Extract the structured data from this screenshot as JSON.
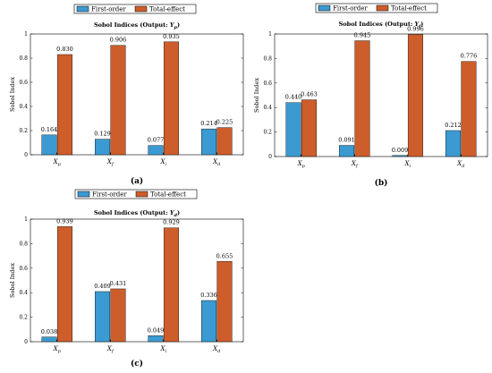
{
  "colors": {
    "first_order": "#3b9ad1",
    "total_effect": "#cd5d2a",
    "axis": "#000000",
    "grid_bg": "#ffffff"
  },
  "chart_data": [
    {
      "type": "bar",
      "title": "Sobol Indices (Output: Yp)",
      "title_prefix": "Sobol Indices (Output: ",
      "title_var": "Y",
      "title_sub": "p",
      "title_suffix": ")",
      "panel_label": "(a)",
      "ylabel": "Sobol Index",
      "ylim": [
        0,
        1
      ],
      "yticks": [
        "0",
        "0.2",
        "0.4",
        "0.6",
        "0.8",
        "1"
      ],
      "categories": [
        {
          "base": "X",
          "sub": "p"
        },
        {
          "base": "X",
          "sub": "f"
        },
        {
          "base": "X",
          "sub": "i"
        },
        {
          "base": "X",
          "sub": "d"
        }
      ],
      "legend": [
        "First-order",
        "Total-effect"
      ],
      "series": [
        {
          "name": "First-order",
          "values": [
            0.164,
            0.129,
            0.077,
            0.214
          ],
          "labels": [
            "0.164",
            "0.129",
            "0.077",
            "0.214"
          ]
        },
        {
          "name": "Total-effect",
          "values": [
            0.83,
            0.906,
            0.935,
            0.225
          ],
          "labels": [
            "0.830",
            "0.906",
            "0.935",
            "0.225"
          ]
        }
      ]
    },
    {
      "type": "bar",
      "title": "Sobol Indices (Output: Yf)",
      "title_prefix": "Sobol Indices (Output: ",
      "title_var": "Y",
      "title_sub": "f",
      "title_suffix": ")",
      "panel_label": "(b)",
      "ylabel": "Sobol Index",
      "ylim": [
        0,
        1
      ],
      "yticks": [
        "0",
        "0.2",
        "0.4",
        "0.6",
        "0.8",
        "1"
      ],
      "categories": [
        {
          "base": "X",
          "sub": "p"
        },
        {
          "base": "X",
          "sub": "f"
        },
        {
          "base": "X",
          "sub": "i"
        },
        {
          "base": "X",
          "sub": "d"
        }
      ],
      "legend": [
        "First-order",
        "Total-effect"
      ],
      "series": [
        {
          "name": "First-order",
          "values": [
            0.44,
            0.091,
            0.009,
            0.212
          ],
          "labels": [
            "0.440",
            "0.091",
            "0.009",
            "0.212"
          ]
        },
        {
          "name": "Total-effect",
          "values": [
            0.463,
            0.945,
            0.996,
            0.776
          ],
          "labels": [
            "0.463",
            "0.945",
            "0.996",
            "0.776"
          ]
        }
      ]
    },
    {
      "type": "bar",
      "title": "Sobol Indices (Output: Yd)",
      "title_prefix": "Sobol Indices (Output: ",
      "title_var": "Y",
      "title_sub": "d",
      "title_suffix": ")",
      "panel_label": "(c)",
      "ylabel": "Sobol Index",
      "ylim": [
        0,
        1
      ],
      "yticks": [
        "0",
        "0.2",
        "0.4",
        "0.6",
        "0.8",
        "1"
      ],
      "categories": [
        {
          "base": "X",
          "sub": "p"
        },
        {
          "base": "X",
          "sub": "f"
        },
        {
          "base": "X",
          "sub": "i"
        },
        {
          "base": "X",
          "sub": "d"
        }
      ],
      "legend": [
        "First-order",
        "Total-effect"
      ],
      "series": [
        {
          "name": "First-order",
          "values": [
            0.038,
            0.409,
            0.049,
            0.336
          ],
          "labels": [
            "0.038",
            "0.409",
            "0.049",
            "0.336"
          ]
        },
        {
          "name": "Total-effect",
          "values": [
            0.939,
            0.431,
            0.929,
            0.655
          ],
          "labels": [
            "0.939",
            "0.431",
            "0.929",
            "0.655"
          ]
        }
      ]
    }
  ]
}
